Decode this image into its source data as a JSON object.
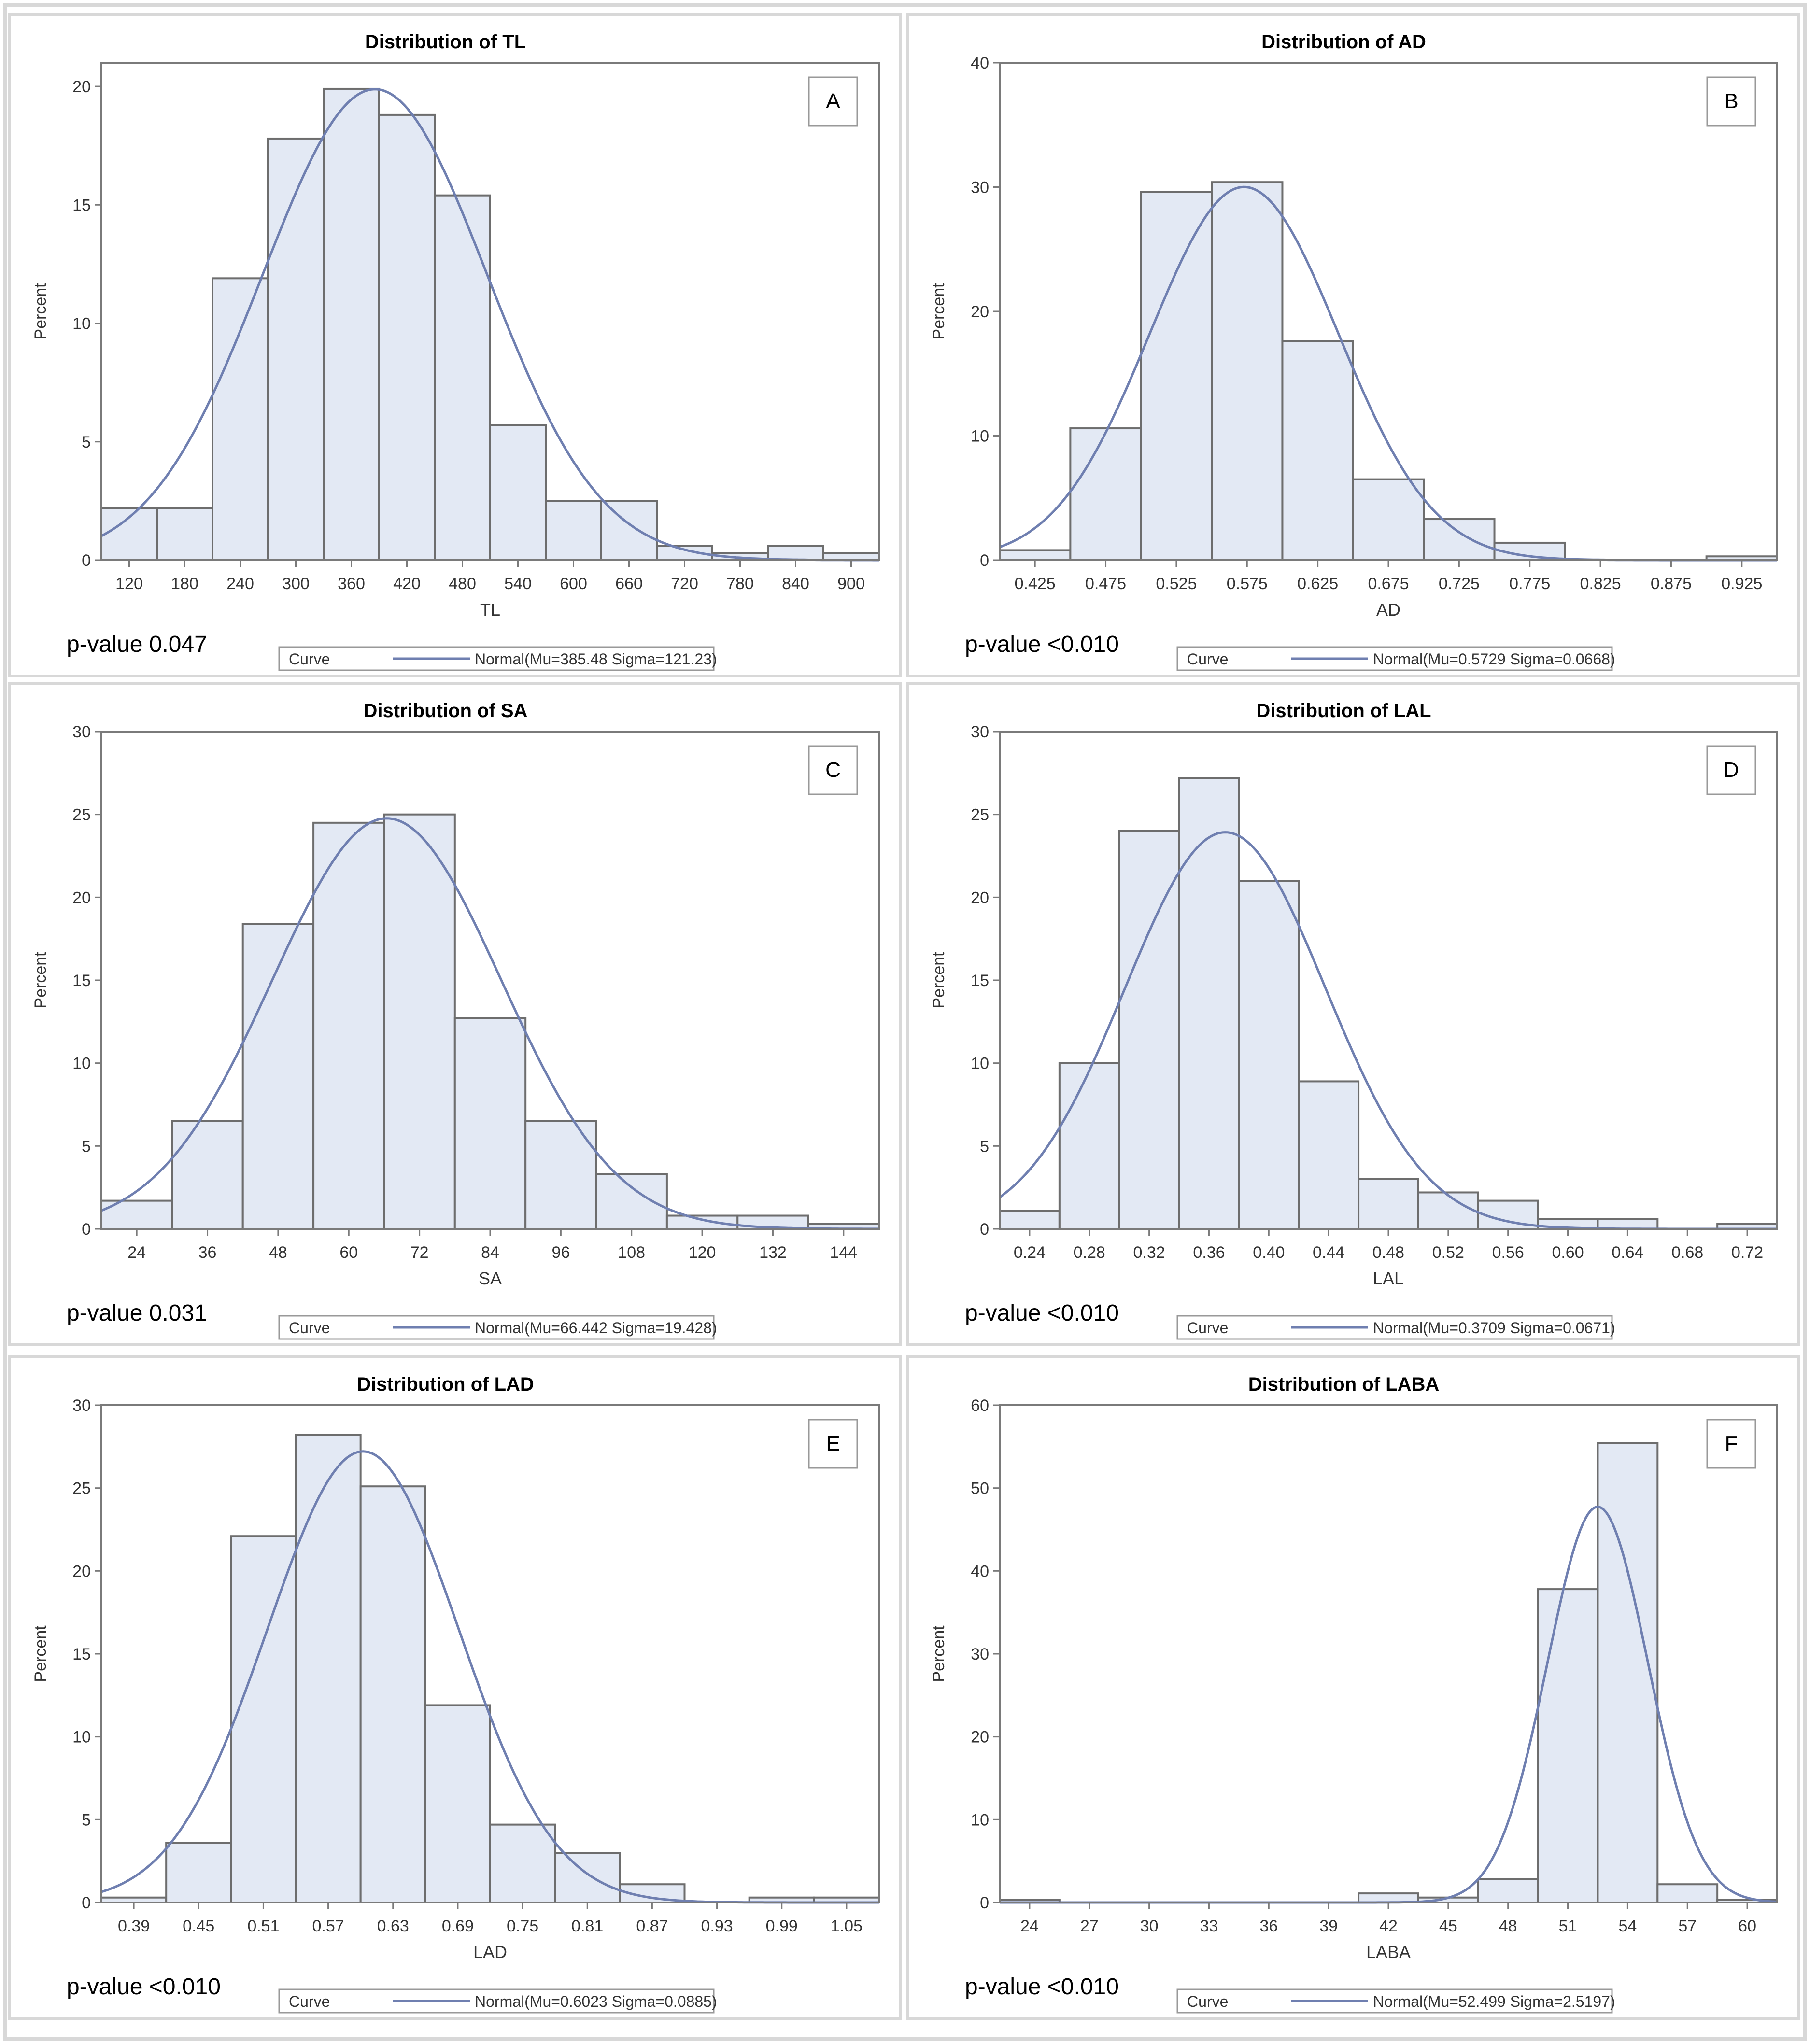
{
  "figure": {
    "colors": {
      "bar_fill": "#e3e9f4",
      "bar_stroke": "#6d6d6d",
      "curve": "#6f7fb0",
      "frame": "#7a7a7a",
      "panel_border": "#d8d8d8"
    }
  },
  "chart_data": [
    {
      "type": "bar",
      "panel": "A",
      "title": "Distribution of TL",
      "xlabel": "TL",
      "ylabel": "Percent",
      "ylim": [
        0,
        21
      ],
      "yticks": [
        0,
        5,
        10,
        15,
        20
      ],
      "xlim": [
        90,
        930
      ],
      "xticks": [
        120,
        180,
        240,
        300,
        360,
        420,
        480,
        540,
        600,
        660,
        720,
        780,
        840,
        900
      ],
      "bin_width": 60,
      "bin_centers": [
        120,
        180,
        240,
        300,
        360,
        420,
        480,
        540,
        600,
        660,
        720,
        780,
        840,
        900
      ],
      "values": [
        2.2,
        2.2,
        11.9,
        17.8,
        19.9,
        18.8,
        15.4,
        5.7,
        2.5,
        2.5,
        0.6,
        0.3,
        0.6,
        0.3
      ],
      "curve": {
        "mu": 385.48,
        "sigma": 121.23
      },
      "pvalue_label": "p-value 0.047",
      "legend": {
        "label": "Curve",
        "entry": "Normal(Mu=385.48 Sigma=121.23)"
      }
    },
    {
      "type": "bar",
      "panel": "B",
      "title": "Distribution of AD",
      "xlabel": "AD",
      "ylabel": "Percent",
      "ylim": [
        0,
        40
      ],
      "yticks": [
        0,
        10,
        20,
        30,
        40
      ],
      "xlim": [
        0.4,
        0.95
      ],
      "xticks": [
        "0.425",
        "0.475",
        "0.525",
        "0.575",
        "0.625",
        "0.675",
        "0.725",
        "0.775",
        "0.825",
        "0.875",
        "0.925"
      ],
      "bin_width": 0.05,
      "bin_centers": [
        0.425,
        0.475,
        0.525,
        0.575,
        0.625,
        0.675,
        0.725,
        0.775,
        0.825,
        0.875,
        0.925
      ],
      "values": [
        0.8,
        10.6,
        29.6,
        30.4,
        17.6,
        6.5,
        3.3,
        1.4,
        0,
        0,
        0.3
      ],
      "curve": {
        "mu": 0.5729,
        "sigma": 0.0668
      },
      "pvalue_label": "p-value <0.010",
      "legend": {
        "label": "Curve",
        "entry": "Normal(Mu=0.5729 Sigma=0.0668)"
      }
    },
    {
      "type": "bar",
      "panel": "C",
      "title": "Distribution of SA",
      "xlabel": "SA",
      "ylabel": "Percent",
      "ylim": [
        0,
        30
      ],
      "yticks": [
        0,
        5,
        10,
        15,
        20,
        25,
        30
      ],
      "xlim": [
        18,
        150
      ],
      "xticks": [
        24,
        36,
        48,
        60,
        72,
        84,
        96,
        108,
        120,
        132,
        144
      ],
      "bin_width": 12,
      "bin_centers": [
        24,
        36,
        48,
        60,
        72,
        84,
        96,
        108,
        120,
        132,
        144
      ],
      "values": [
        1.7,
        6.5,
        18.4,
        24.5,
        25.0,
        12.7,
        6.5,
        3.3,
        0.8,
        0.8,
        0.3
      ],
      "curve": {
        "mu": 66.442,
        "sigma": 19.428
      },
      "pvalue_label": "p-value 0.031",
      "legend": {
        "label": "Curve",
        "entry": "Normal(Mu=66.442 Sigma=19.428)"
      }
    },
    {
      "type": "bar",
      "panel": "D",
      "title": "Distribution of LAL",
      "xlabel": "LAL",
      "ylabel": "Percent",
      "ylim": [
        0,
        30
      ],
      "yticks": [
        0,
        5,
        10,
        15,
        20,
        25,
        30
      ],
      "xlim": [
        0.22,
        0.74
      ],
      "xticks": [
        "0.24",
        "0.28",
        "0.32",
        "0.36",
        "0.40",
        "0.44",
        "0.48",
        "0.52",
        "0.56",
        "0.60",
        "0.64",
        "0.68",
        "0.72"
      ],
      "bin_width": 0.04,
      "bin_centers": [
        0.24,
        0.28,
        0.32,
        0.36,
        0.4,
        0.44,
        0.48,
        0.52,
        0.56,
        0.6,
        0.64,
        0.68,
        0.72
      ],
      "values": [
        1.1,
        10.0,
        24.0,
        27.2,
        21.0,
        8.9,
        3.0,
        2.2,
        1.7,
        0.6,
        0.6,
        0,
        0.3
      ],
      "curve": {
        "mu": 0.3709,
        "sigma": 0.0671
      },
      "pvalue_label": "p-value <0.010",
      "legend": {
        "label": "Curve",
        "entry": "Normal(Mu=0.3709 Sigma=0.0671)"
      }
    },
    {
      "type": "bar",
      "panel": "E",
      "title": "Distribution of LAD",
      "xlabel": "LAD",
      "ylabel": "Percent",
      "ylim": [
        0,
        30
      ],
      "yticks": [
        0,
        5,
        10,
        15,
        20,
        25,
        30
      ],
      "xlim": [
        0.36,
        1.08
      ],
      "xticks": [
        "0.39",
        "0.45",
        "0.51",
        "0.57",
        "0.63",
        "0.69",
        "0.75",
        "0.81",
        "0.87",
        "0.93",
        "0.99",
        "1.05"
      ],
      "bin_width": 0.06,
      "bin_centers": [
        0.39,
        0.45,
        0.51,
        0.57,
        0.63,
        0.69,
        0.75,
        0.81,
        0.87,
        0.93,
        0.99,
        1.05
      ],
      "values": [
        0.3,
        3.6,
        22.1,
        28.2,
        25.1,
        11.9,
        4.7,
        3.0,
        1.1,
        0,
        0.3,
        0.3
      ],
      "curve": {
        "mu": 0.6023,
        "sigma": 0.0885
      },
      "pvalue_label": "p-value <0.010",
      "legend": {
        "label": "Curve",
        "entry": "Normal(Mu=0.6023 Sigma=0.0885)"
      }
    },
    {
      "type": "bar",
      "panel": "F",
      "title": "Distribution of LABA",
      "xlabel": "LABA",
      "ylabel": "Percent",
      "ylim": [
        0,
        60
      ],
      "yticks": [
        0,
        10,
        20,
        30,
        40,
        50,
        60
      ],
      "xlim": [
        22.5,
        61.5
      ],
      "xticks": [
        24,
        27,
        30,
        33,
        36,
        39,
        42,
        45,
        48,
        51,
        54,
        57,
        60
      ],
      "bin_width": 3,
      "bin_centers": [
        24,
        27,
        30,
        33,
        36,
        39,
        42,
        45,
        48,
        51,
        54,
        57,
        60
      ],
      "values": [
        0.3,
        0,
        0,
        0,
        0,
        0,
        1.1,
        0.6,
        2.8,
        37.8,
        55.4,
        2.2,
        0.3
      ],
      "curve": {
        "mu": 52.499,
        "sigma": 2.5197
      },
      "pvalue_label": "p-value <0.010",
      "legend": {
        "label": "Curve",
        "entry": "Normal(Mu=52.499 Sigma=2.5197)"
      }
    }
  ]
}
